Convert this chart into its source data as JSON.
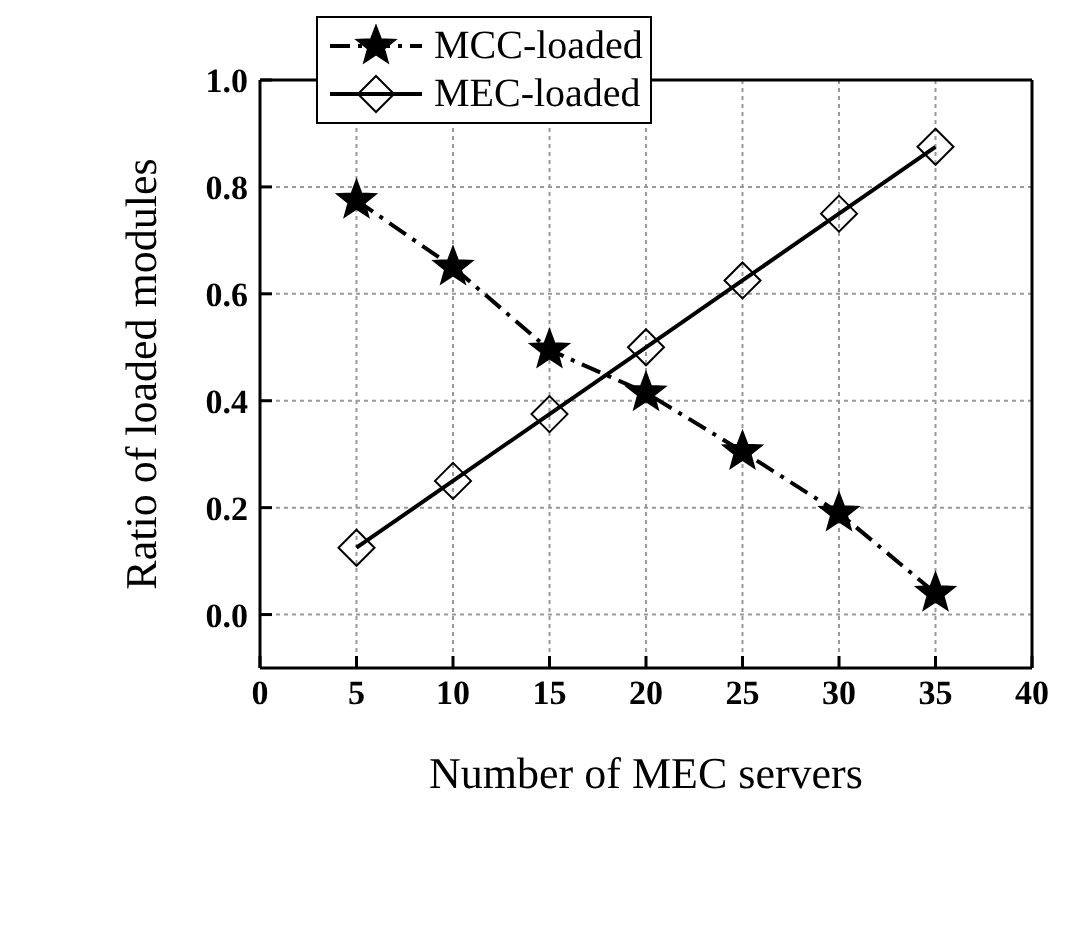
{
  "chart_data": {
    "type": "line",
    "xlabel": "Number of MEC servers",
    "ylabel": "Ratio of loaded modules",
    "x": [
      5,
      10,
      15,
      20,
      25,
      30,
      35
    ],
    "series": [
      {
        "name": "MCC-loaded",
        "color": "#000000",
        "marker": "star",
        "line_style": "dashed",
        "values": [
          0.775,
          0.65,
          0.495,
          0.415,
          0.305,
          0.19,
          0.04
        ]
      },
      {
        "name": "MEC-loaded",
        "color": "#000000",
        "marker": "diamond",
        "line_style": "solid",
        "values": [
          0.125,
          0.25,
          0.375,
          0.5,
          0.625,
          0.75,
          0.875
        ]
      }
    ],
    "xlim": [
      0,
      40
    ],
    "xticks": [
      0,
      5,
      10,
      15,
      20,
      25,
      30,
      35,
      40
    ],
    "ylim": [
      -0.1,
      1.0
    ],
    "yticks": [
      {
        "value": 0,
        "label": "0.0"
      },
      {
        "value": 0.2,
        "label": "0.2"
      },
      {
        "value": 0.4,
        "label": "0.4"
      },
      {
        "value": 0.6,
        "label": "0.6"
      },
      {
        "value": 0.8,
        "label": "0.8"
      },
      {
        "value": 1.0,
        "label": "1.0"
      }
    ],
    "grid": true,
    "legend": "top"
  }
}
